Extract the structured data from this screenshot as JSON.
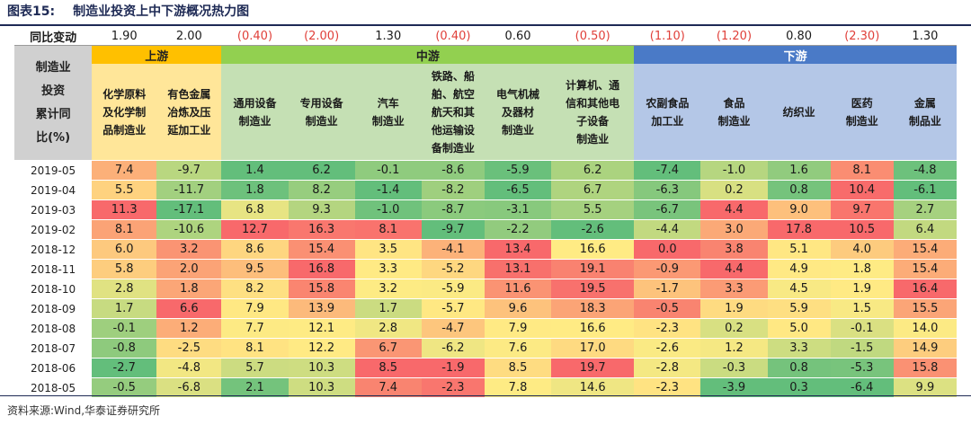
{
  "title": {
    "label": "图表15:",
    "text": "制造业投资上中下游概况热力图"
  },
  "source": "资料来源:Wind,华泰证券研究所",
  "change_row": {
    "label": "同比变动",
    "values": [
      "1.90",
      "2.00",
      "(0.40)",
      "(2.00)",
      "1.30",
      "(0.40)",
      "0.60",
      "(0.50)",
      "(1.10)",
      "(1.20)",
      "0.80",
      "(2.30)",
      "1.30"
    ]
  },
  "corner_label_lines": [
    "制造业",
    "投资",
    "累计同",
    "比(%)"
  ],
  "groups": [
    {
      "label": "上游",
      "span": 2,
      "class": "g-up"
    },
    {
      "label": "中游",
      "span": 6,
      "class": "g-mid"
    },
    {
      "label": "下游",
      "span": 5,
      "class": "g-down"
    }
  ],
  "columns": [
    {
      "lines": [
        "化学原料",
        "及化学制",
        "品制造业"
      ],
      "group": "up"
    },
    {
      "lines": [
        "有色金属",
        "冶炼及压",
        "延加工业"
      ],
      "group": "up"
    },
    {
      "lines": [
        "通用设备",
        "制造业"
      ],
      "group": "mid"
    },
    {
      "lines": [
        "专用设备",
        "制造业"
      ],
      "group": "mid"
    },
    {
      "lines": [
        "汽车",
        "制造业"
      ],
      "group": "mid"
    },
    {
      "lines": [
        "铁路、船",
        "舶、航空",
        "航天和其",
        "他运输设",
        "备制造业"
      ],
      "group": "mid"
    },
    {
      "lines": [
        "电气机械",
        "及器材",
        "制造业"
      ],
      "group": "mid"
    },
    {
      "lines": [
        "计算机、通",
        "信和其他电",
        "子设备",
        "制造业"
      ],
      "group": "mid"
    },
    {
      "lines": [
        "农副食品",
        "加工业"
      ],
      "group": "down"
    },
    {
      "lines": [
        "食品",
        "制造业"
      ],
      "group": "down"
    },
    {
      "lines": [
        "纺织业"
      ],
      "group": "down"
    },
    {
      "lines": [
        "医药",
        "制造业"
      ],
      "group": "down"
    },
    {
      "lines": [
        "金属",
        "制品业"
      ],
      "group": "down"
    }
  ],
  "rows": [
    {
      "date": "2019-05",
      "values": [
        "7.4",
        "-9.7",
        "1.4",
        "6.2",
        "-0.1",
        "-8.6",
        "-5.9",
        "6.2",
        "-7.4",
        "-1.0",
        "1.6",
        "8.1",
        "-4.8"
      ]
    },
    {
      "date": "2019-04",
      "values": [
        "5.5",
        "-11.7",
        "1.8",
        "8.2",
        "-1.4",
        "-8.2",
        "-6.5",
        "6.7",
        "-6.3",
        "0.2",
        "0.8",
        "10.4",
        "-6.1"
      ]
    },
    {
      "date": "2019-03",
      "values": [
        "11.3",
        "-17.1",
        "6.8",
        "9.3",
        "-1.0",
        "-8.7",
        "-3.1",
        "5.5",
        "-6.7",
        "4.4",
        "9.0",
        "9.7",
        "2.7"
      ]
    },
    {
      "date": "2019-02",
      "values": [
        "8.1",
        "-10.6",
        "12.7",
        "16.3",
        "8.1",
        "-9.7",
        "-2.2",
        "-2.6",
        "-4.4",
        "3.0",
        "17.8",
        "10.5",
        "6.4"
      ]
    },
    {
      "date": "2018-12",
      "values": [
        "6.0",
        "3.2",
        "8.6",
        "15.4",
        "3.5",
        "-4.1",
        "13.4",
        "16.6",
        "0.0",
        "3.8",
        "5.1",
        "4.0",
        "15.4"
      ]
    },
    {
      "date": "2018-11",
      "values": [
        "5.8",
        "2.0",
        "9.5",
        "16.8",
        "3.3",
        "-5.2",
        "13.1",
        "19.1",
        "-0.9",
        "4.4",
        "4.9",
        "1.8",
        "15.4"
      ]
    },
    {
      "date": "2018-10",
      "values": [
        "2.8",
        "1.8",
        "8.2",
        "15.8",
        "3.2",
        "-5.9",
        "11.6",
        "19.5",
        "-1.7",
        "3.3",
        "4.5",
        "1.9",
        "16.4"
      ]
    },
    {
      "date": "2018-09",
      "values": [
        "1.7",
        "6.6",
        "7.9",
        "13.9",
        "1.7",
        "-5.7",
        "9.6",
        "18.3",
        "-0.5",
        "1.9",
        "5.9",
        "1.5",
        "15.5"
      ]
    },
    {
      "date": "2018-08",
      "values": [
        "-0.1",
        "1.2",
        "7.7",
        "12.1",
        "2.8",
        "-4.7",
        "7.9",
        "16.6",
        "-2.3",
        "0.2",
        "5.0",
        "-0.1",
        "14.0"
      ]
    },
    {
      "date": "2018-07",
      "values": [
        "-0.8",
        "-2.5",
        "8.1",
        "12.2",
        "6.7",
        "-6.2",
        "7.6",
        "17.0",
        "-2.6",
        "1.2",
        "3.3",
        "-1.5",
        "14.9"
      ]
    },
    {
      "date": "2018-06",
      "values": [
        "-2.7",
        "-4.8",
        "5.7",
        "10.3",
        "8.5",
        "-1.9",
        "8.5",
        "19.7",
        "-2.8",
        "-0.3",
        "0.8",
        "-5.3",
        "15.8"
      ]
    },
    {
      "date": "2018-05",
      "values": [
        "-0.5",
        "-6.8",
        "2.1",
        "10.3",
        "7.4",
        "-2.3",
        "7.8",
        "14.6",
        "-2.3",
        "-3.9",
        "0.3",
        "-6.4",
        "9.9"
      ]
    }
  ],
  "colors": {
    "title": "#1e2a55",
    "upstream": "#ffc000",
    "midstream": "#92d050",
    "downstream": "#4a7ac7",
    "heat_low": "#63be7b",
    "heat_mid": "#ffeb84",
    "heat_high": "#f8696b",
    "negative_change": "#e0403a"
  }
}
